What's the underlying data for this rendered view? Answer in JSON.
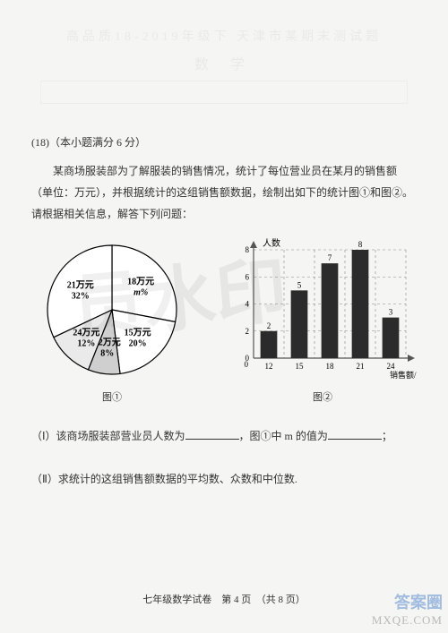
{
  "faded": {
    "line1": "高品质18-2019年级下 天津市某期末测试题",
    "line2": "数 学"
  },
  "question": {
    "number": "(18)（本小题满分 6 分）",
    "text": "某商场服装部为了解服装的销售情况，统计了每位营业员在某月的销售额（单位：万元），并根据统计的这组销售额数据，绘制出如下的统计图①和图②。请根据相关信息，解答下列问题："
  },
  "pie": {
    "slices": [
      {
        "label": "18万元",
        "sub": "m%",
        "percent": 28,
        "color": "#ffffff"
      },
      {
        "label": "15万元",
        "sub": "20%",
        "percent": 20,
        "color": "#ffffff"
      },
      {
        "label": "12万元",
        "sub": "8%",
        "percent": 8,
        "color": "#cfcfcf"
      },
      {
        "label": "24万元",
        "sub": "12%",
        "percent": 12,
        "color": "#eaeaea"
      },
      {
        "label": "21万元",
        "sub": "32%",
        "percent": 32,
        "color": "#ffffff"
      }
    ],
    "stroke": "#000000",
    "label_fontsize": 10,
    "caption": "图①"
  },
  "bar": {
    "ylabel": "人数",
    "xlabel": "销售额/万",
    "categories": [
      "12",
      "15",
      "18",
      "21",
      "24"
    ],
    "values": [
      2,
      5,
      7,
      8,
      3
    ],
    "ylim": [
      0,
      8
    ],
    "ytick_step": 2,
    "bar_color": "#2b2b2b",
    "axis_color": "#555",
    "grid_color": "#888",
    "bar_width": 0.55,
    "caption": "图②",
    "fontsize": 9
  },
  "subq1": {
    "prefix": "（Ⅰ）该商场服装部营业员人数为",
    "mid": "，图①中 m 的值为",
    "suffix": "；"
  },
  "subq2": "（Ⅱ）求统计的这组销售额数据的平均数、众数和中位数.",
  "footer": "七年级数学试卷　第 4 页　（共 8 页）",
  "watermark": "员水印",
  "corner": {
    "l1": "答案圈",
    "l2": "MXQE.COM"
  }
}
